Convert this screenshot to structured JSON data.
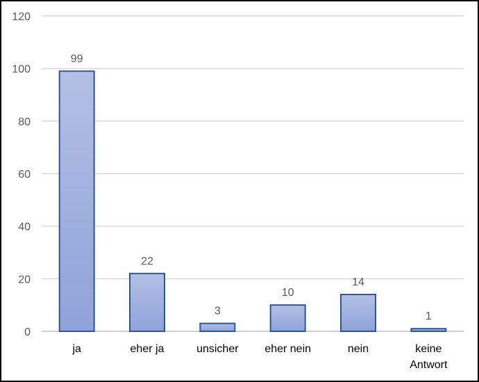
{
  "chart_data": {
    "type": "bar",
    "categories": [
      "ja",
      "eher ja",
      "unsicher",
      "eher nein",
      "nein",
      "keine Antwort"
    ],
    "values": [
      99,
      22,
      3,
      10,
      14,
      1
    ],
    "title": "",
    "xlabel": "",
    "ylabel": "",
    "ylim": [
      0,
      120
    ],
    "yticks": [
      0,
      20,
      40,
      60,
      80,
      100,
      120
    ],
    "grid": true,
    "legend": "none",
    "bar_gradient": [
      "#b4c0e4",
      "#8ea3da"
    ],
    "bar_border": "#2f5597"
  }
}
